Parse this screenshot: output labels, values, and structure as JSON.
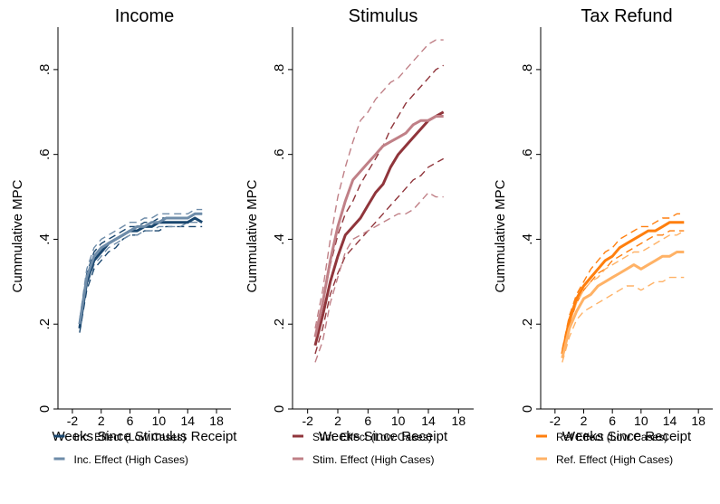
{
  "chart_data": [
    {
      "type": "line",
      "title": "Income",
      "xlabel": "Weeks Since Stimulus Receipt",
      "ylabel": "Cummulative MPC",
      "xlim": [
        -4,
        20
      ],
      "ylim": [
        0,
        0.9
      ],
      "xticks": [
        "-2",
        "2",
        "6",
        "10",
        "14",
        "18"
      ],
      "yticks": [
        "0",
        ".2",
        ".4",
        ".6",
        ".8"
      ],
      "legend_position": "bottom",
      "x": [
        -1,
        0,
        1,
        2,
        3,
        4,
        5,
        6,
        7,
        8,
        9,
        10,
        11,
        12,
        13,
        14,
        15,
        16
      ],
      "series": [
        {
          "name": "Inc. Effect (Low Cases)",
          "color": "#1a476f",
          "style": "solid",
          "in_legend": true,
          "values": [
            0.19,
            0.3,
            0.35,
            0.37,
            0.39,
            0.4,
            0.41,
            0.42,
            0.42,
            0.43,
            0.43,
            0.44,
            0.44,
            0.44,
            0.44,
            0.44,
            0.45,
            0.44
          ]
        },
        {
          "name": "Inc. Effect (High Cases)",
          "color": "#6e8ca9",
          "style": "solid",
          "in_legend": true,
          "values": [
            0.2,
            0.31,
            0.36,
            0.38,
            0.39,
            0.4,
            0.41,
            0.42,
            0.43,
            0.43,
            0.44,
            0.44,
            0.45,
            0.45,
            0.45,
            0.45,
            0.46,
            0.46
          ]
        },
        {
          "color": "#1a476f",
          "style": "dashed",
          "in_legend": false,
          "values": [
            0.2,
            0.32,
            0.37,
            0.39,
            0.4,
            0.41,
            0.42,
            0.43,
            0.43,
            0.44,
            0.44,
            0.45,
            0.45,
            0.45,
            0.45,
            0.45,
            0.46,
            0.46
          ]
        },
        {
          "color": "#1a476f",
          "style": "dashed",
          "in_legend": false,
          "values": [
            0.18,
            0.28,
            0.33,
            0.35,
            0.37,
            0.38,
            0.4,
            0.41,
            0.41,
            0.42,
            0.42,
            0.42,
            0.43,
            0.43,
            0.43,
            0.43,
            0.43,
            0.43
          ]
        },
        {
          "color": "#6e8ca9",
          "style": "dashed",
          "in_legend": false,
          "values": [
            0.21,
            0.33,
            0.38,
            0.4,
            0.41,
            0.42,
            0.43,
            0.44,
            0.44,
            0.45,
            0.45,
            0.46,
            0.46,
            0.46,
            0.46,
            0.46,
            0.47,
            0.47
          ]
        },
        {
          "color": "#6e8ca9",
          "style": "dashed",
          "in_legend": false,
          "values": [
            0.19,
            0.29,
            0.34,
            0.36,
            0.38,
            0.39,
            0.4,
            0.41,
            0.41,
            0.42,
            0.42,
            0.43,
            0.43,
            0.43,
            0.43,
            0.44,
            0.44,
            0.44
          ]
        }
      ]
    },
    {
      "type": "line",
      "title": "Stimulus",
      "xlabel": "Weeks Since Receipt",
      "ylabel": "Cummulative MPC",
      "xlim": [
        -4,
        20
      ],
      "ylim": [
        0,
        0.9
      ],
      "xticks": [
        "-2",
        "2",
        "6",
        "10",
        "14",
        "18"
      ],
      "yticks": [
        "0",
        ".2",
        ".4",
        ".6",
        ".8"
      ],
      "legend_position": "bottom",
      "x": [
        -1,
        0,
        1,
        2,
        3,
        4,
        5,
        6,
        7,
        8,
        9,
        10,
        11,
        12,
        13,
        14,
        15,
        16
      ],
      "series": [
        {
          "name": "Stim. Effect (Low Cases)",
          "color": "#90353b",
          "style": "solid",
          "in_legend": true,
          "values": [
            0.15,
            0.22,
            0.3,
            0.36,
            0.41,
            0.43,
            0.45,
            0.48,
            0.51,
            0.53,
            0.57,
            0.6,
            0.62,
            0.64,
            0.66,
            0.68,
            0.69,
            0.7
          ]
        },
        {
          "name": "Stim. Effect (High Cases)",
          "color": "#c08087",
          "style": "solid",
          "in_legend": true,
          "values": [
            0.17,
            0.25,
            0.35,
            0.43,
            0.49,
            0.54,
            0.56,
            0.58,
            0.6,
            0.62,
            0.63,
            0.64,
            0.65,
            0.67,
            0.68,
            0.68,
            0.69,
            0.69
          ]
        },
        {
          "color": "#90353b",
          "style": "dashed",
          "in_legend": false,
          "values": [
            0.17,
            0.25,
            0.34,
            0.41,
            0.46,
            0.49,
            0.53,
            0.56,
            0.59,
            0.62,
            0.66,
            0.69,
            0.72,
            0.74,
            0.76,
            0.78,
            0.8,
            0.81
          ]
        },
        {
          "color": "#90353b",
          "style": "dashed",
          "in_legend": false,
          "values": [
            0.13,
            0.19,
            0.27,
            0.32,
            0.36,
            0.38,
            0.4,
            0.42,
            0.44,
            0.46,
            0.48,
            0.5,
            0.52,
            0.54,
            0.55,
            0.57,
            0.58,
            0.59
          ]
        },
        {
          "color": "#c08087",
          "style": "dashed",
          "in_legend": false,
          "values": [
            0.19,
            0.28,
            0.4,
            0.5,
            0.57,
            0.63,
            0.68,
            0.7,
            0.73,
            0.75,
            0.77,
            0.78,
            0.8,
            0.82,
            0.84,
            0.86,
            0.87,
            0.87
          ]
        },
        {
          "color": "#c08087",
          "style": "dashed",
          "in_legend": false,
          "values": [
            0.11,
            0.16,
            0.25,
            0.31,
            0.37,
            0.4,
            0.41,
            0.42,
            0.43,
            0.44,
            0.45,
            0.46,
            0.46,
            0.47,
            0.49,
            0.51,
            0.5,
            0.5
          ]
        }
      ]
    },
    {
      "type": "line",
      "title": "Tax Refund",
      "xlabel": "Weeks Since  Receipt",
      "ylabel": "Cummulative MPC",
      "xlim": [
        -4,
        20
      ],
      "ylim": [
        0,
        0.9
      ],
      "xticks": [
        "-2",
        "2",
        "6",
        "10",
        "14",
        "18"
      ],
      "yticks": [
        "0",
        ".2",
        ".4",
        ".6",
        ".8"
      ],
      "legend_position": "bottom",
      "x": [
        -1,
        0,
        1,
        2,
        3,
        4,
        5,
        6,
        7,
        8,
        9,
        10,
        11,
        12,
        13,
        14,
        15,
        16
      ],
      "series": [
        {
          "name": "Ref Effect (Low Cases)",
          "color": "#ff7f0e",
          "style": "solid",
          "in_legend": true,
          "values": [
            0.13,
            0.21,
            0.26,
            0.29,
            0.31,
            0.33,
            0.35,
            0.36,
            0.38,
            0.39,
            0.4,
            0.41,
            0.42,
            0.42,
            0.43,
            0.44,
            0.44,
            0.44
          ]
        },
        {
          "name": "Ref. Effect (High Cases)",
          "color": "#ffb266",
          "style": "solid",
          "in_legend": true,
          "values": [
            0.12,
            0.19,
            0.23,
            0.26,
            0.27,
            0.29,
            0.3,
            0.31,
            0.32,
            0.33,
            0.34,
            0.33,
            0.34,
            0.35,
            0.36,
            0.36,
            0.37,
            0.37
          ]
        },
        {
          "color": "#ff7f0e",
          "style": "dashed",
          "in_legend": false,
          "values": [
            0.14,
            0.22,
            0.27,
            0.3,
            0.33,
            0.35,
            0.37,
            0.38,
            0.4,
            0.41,
            0.42,
            0.43,
            0.43,
            0.44,
            0.45,
            0.45,
            0.46,
            0.46
          ]
        },
        {
          "color": "#ff7f0e",
          "style": "dashed",
          "in_legend": false,
          "values": [
            0.12,
            0.2,
            0.25,
            0.28,
            0.3,
            0.32,
            0.33,
            0.35,
            0.36,
            0.37,
            0.38,
            0.39,
            0.4,
            0.41,
            0.41,
            0.42,
            0.42,
            0.42
          ]
        },
        {
          "color": "#ffb266",
          "style": "dashed",
          "in_legend": false,
          "values": [
            0.13,
            0.2,
            0.25,
            0.28,
            0.3,
            0.31,
            0.33,
            0.34,
            0.35,
            0.36,
            0.37,
            0.37,
            0.38,
            0.39,
            0.4,
            0.41,
            0.41,
            0.42
          ]
        },
        {
          "color": "#ffb266",
          "style": "dashed",
          "in_legend": false,
          "values": [
            0.11,
            0.17,
            0.21,
            0.23,
            0.24,
            0.25,
            0.26,
            0.27,
            0.28,
            0.29,
            0.29,
            0.28,
            0.29,
            0.3,
            0.3,
            0.31,
            0.31,
            0.31
          ]
        }
      ]
    }
  ]
}
